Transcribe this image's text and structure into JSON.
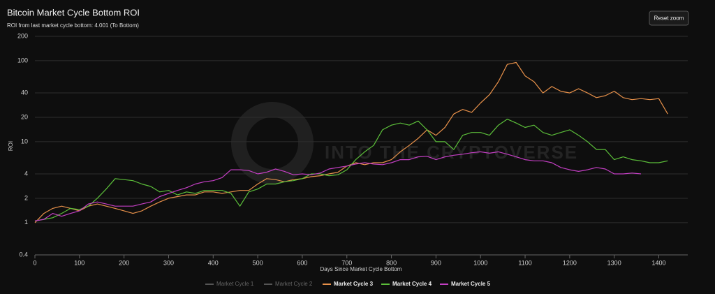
{
  "chart_data": {
    "type": "line",
    "title": "Bitcoin Market Cycle Bottom ROI",
    "subtitle": "ROI from last market cycle bottom: 4.001 (To Bottom)",
    "button": "Reset zoom",
    "watermark": "INTO THE CRYPTOVERSE",
    "xlabel": "Days Since Market Cycle Bottom",
    "ylabel": "ROI",
    "log_y": true,
    "grid": true,
    "legend": "bottom",
    "xlim": [
      0,
      1465
    ],
    "xticks": [
      0,
      100,
      200,
      300,
      400,
      500,
      600,
      700,
      800,
      900,
      1000,
      1100,
      1200,
      1300,
      1400
    ],
    "ylim": [
      0.4,
      200
    ],
    "yticks": [
      0.4,
      1,
      2,
      4,
      10,
      20,
      40,
      100,
      200
    ],
    "x": [
      0,
      20,
      40,
      60,
      80,
      100,
      120,
      140,
      160,
      180,
      200,
      220,
      240,
      260,
      280,
      300,
      320,
      340,
      360,
      380,
      400,
      420,
      440,
      460,
      480,
      500,
      520,
      540,
      560,
      580,
      600,
      620,
      640,
      660,
      680,
      700,
      720,
      740,
      760,
      780,
      800,
      820,
      840,
      860,
      880,
      900,
      920,
      940,
      960,
      980,
      1000,
      1020,
      1040,
      1060,
      1080,
      1100,
      1120,
      1140,
      1160,
      1180,
      1200,
      1220,
      1240,
      1260,
      1280,
      1300,
      1320,
      1340,
      1360,
      1380,
      1400,
      1420,
      1440
    ],
    "series": [
      {
        "name": "Market Cycle 1",
        "color": "#7cb5ec",
        "visible": false,
        "values": [
          null,
          null,
          null,
          null,
          null,
          null,
          null,
          null,
          null,
          null,
          null,
          null,
          null,
          null,
          null,
          null,
          null,
          null,
          null,
          null,
          null,
          null,
          null,
          null,
          null,
          null,
          null,
          null,
          null,
          null,
          null,
          null,
          null,
          null,
          null,
          null,
          null,
          null,
          null,
          null,
          null,
          null,
          null,
          null,
          null,
          null,
          null,
          null,
          null,
          null,
          null,
          null,
          null,
          null,
          null,
          null,
          null,
          null,
          null,
          null,
          null,
          null,
          null,
          null,
          null,
          null,
          null,
          null,
          null,
          null,
          null,
          null,
          null
        ]
      },
      {
        "name": "Market Cycle 2",
        "color": "#aaaaaa",
        "visible": false,
        "values": [
          null,
          null,
          null,
          null,
          null,
          null,
          null,
          null,
          null,
          null,
          null,
          null,
          null,
          null,
          null,
          null,
          null,
          null,
          null,
          null,
          null,
          null,
          null,
          null,
          null,
          null,
          null,
          null,
          null,
          null,
          null,
          null,
          null,
          null,
          null,
          null,
          null,
          null,
          null,
          null,
          null,
          null,
          null,
          null,
          null,
          null,
          null,
          null,
          null,
          null,
          null,
          null,
          null,
          null,
          null,
          null,
          null,
          null,
          null,
          null,
          null,
          null,
          null,
          null,
          null,
          null,
          null,
          null,
          null,
          null,
          null,
          null,
          null
        ]
      },
      {
        "name": "Market Cycle 3",
        "color": "#e8914a",
        "visible": true,
        "values": [
          1,
          1.3,
          1.5,
          1.6,
          1.5,
          1.4,
          1.6,
          1.7,
          1.6,
          1.5,
          1.4,
          1.3,
          1.4,
          1.6,
          1.8,
          2.0,
          2.1,
          2.2,
          2.2,
          2.4,
          2.4,
          2.3,
          2.4,
          2.5,
          2.5,
          3.0,
          3.5,
          3.4,
          3.2,
          3.4,
          3.5,
          3.7,
          3.8,
          4.0,
          4.2,
          5.0,
          5.5,
          5.2,
          5.5,
          5.5,
          6.0,
          7.5,
          9,
          11,
          14,
          12,
          15,
          22,
          25,
          23,
          30,
          38,
          55,
          90,
          95,
          65,
          55,
          40,
          48,
          42,
          40,
          45,
          40,
          35,
          37,
          42,
          35,
          33,
          34,
          33,
          34,
          22,
          null
        ]
      },
      {
        "name": "Market Cycle 4",
        "color": "#5cbf3a",
        "visible": true,
        "values": [
          1.05,
          1.1,
          1.15,
          1.3,
          1.5,
          1.45,
          1.6,
          2.0,
          2.6,
          3.5,
          3.4,
          3.3,
          3.0,
          2.8,
          2.4,
          2.5,
          2.2,
          2.4,
          2.3,
          2.5,
          2.5,
          2.5,
          2.3,
          1.6,
          2.4,
          2.6,
          3.0,
          3.0,
          3.2,
          3.3,
          3.5,
          4.0,
          4.0,
          3.8,
          3.9,
          4.5,
          6,
          7.5,
          9,
          14,
          16,
          17,
          16,
          18,
          14,
          10,
          10,
          8,
          12,
          13,
          13,
          12,
          16,
          19,
          17,
          15,
          16,
          13,
          12,
          13,
          14,
          12,
          10,
          8,
          8,
          6,
          6.5,
          6,
          5.8,
          5.5,
          5.5,
          5.8,
          null
        ]
      },
      {
        "name": "Market Cycle 5",
        "color": "#c43fc4",
        "visible": true,
        "values": [
          1.05,
          1.1,
          1.3,
          1.2,
          1.3,
          1.4,
          1.7,
          1.8,
          1.7,
          1.6,
          1.6,
          1.6,
          1.7,
          1.8,
          2.1,
          2.3,
          2.5,
          2.7,
          3.0,
          3.2,
          3.3,
          3.6,
          4.5,
          4.5,
          4.4,
          4.0,
          4.2,
          4.6,
          4.3,
          3.9,
          4.0,
          3.9,
          4.1,
          4.6,
          4.8,
          5.0,
          5.3,
          5.5,
          5.3,
          5.2,
          5.5,
          6.0,
          6.0,
          6.5,
          6.6,
          6.0,
          6.5,
          6.8,
          7.0,
          7.3,
          7.5,
          7.2,
          7.5,
          7.0,
          6.5,
          6.0,
          5.8,
          5.8,
          5.5,
          4.8,
          4.5,
          4.3,
          4.5,
          4.8,
          4.6,
          4.0,
          4.0,
          4.1,
          4.0,
          null,
          null,
          null,
          null
        ]
      }
    ]
  }
}
